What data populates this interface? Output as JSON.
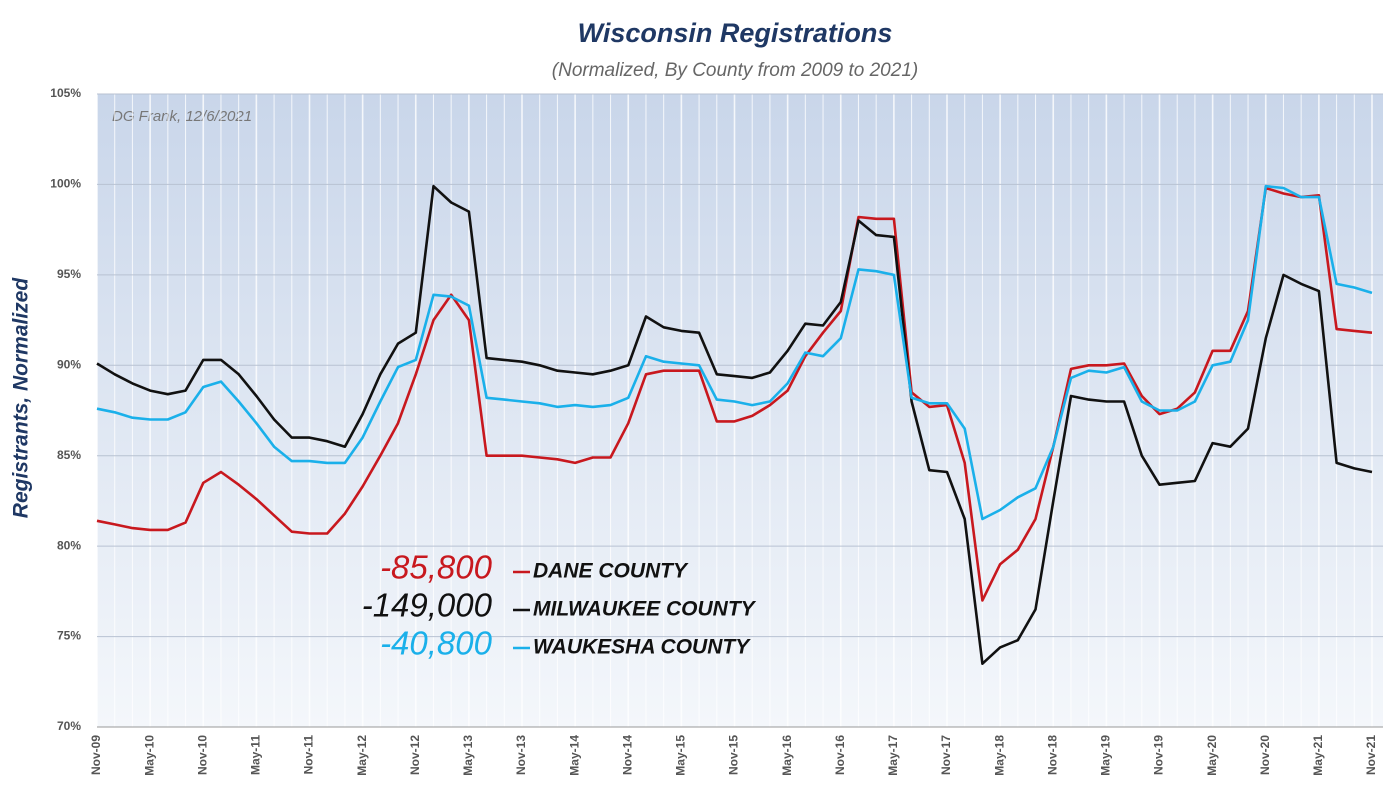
{
  "chart_data": {
    "type": "line",
    "title": "Wisconsin Registrations",
    "subtitle": "(Normalized, By County from 2009 to 2021)",
    "note": "DG Frank, 12/6/2021",
    "y_label": "Registrants, Normalized",
    "categories": [
      "Nov-09",
      null,
      null,
      "May-10",
      null,
      null,
      "Nov-10",
      null,
      null,
      "May-11",
      null,
      null,
      "Nov-11",
      null,
      null,
      "May-12",
      null,
      null,
      "Nov-12",
      null,
      null,
      "May-13",
      null,
      null,
      "Nov-13",
      null,
      null,
      "May-14",
      null,
      null,
      "Nov-14",
      null,
      null,
      "May-15",
      null,
      null,
      "Nov-15",
      null,
      null,
      "May-16",
      null,
      null,
      "Nov-16",
      null,
      null,
      "May-17",
      null,
      null,
      "Nov-17",
      null,
      null,
      "May-18",
      null,
      null,
      "Nov-18",
      null,
      null,
      "May-19",
      null,
      null,
      "Nov-19",
      null,
      null,
      "May-20",
      null,
      null,
      "Nov-20",
      null,
      null,
      "May-21",
      null,
      null,
      "Nov-21"
    ],
    "series": [
      {
        "name": "DANE COUNTY",
        "annotation": "-85,800",
        "color": "#c8181e",
        "values": [
          81.4,
          81.2,
          81.0,
          80.9,
          80.9,
          81.3,
          83.5,
          84.1,
          83.4,
          82.6,
          81.7,
          80.8,
          80.7,
          80.7,
          81.8,
          83.3,
          85.0,
          86.8,
          89.5,
          92.5,
          93.9,
          92.5,
          85.0,
          85.0,
          85.0,
          84.9,
          84.8,
          84.6,
          84.9,
          84.9,
          86.8,
          89.5,
          89.7,
          89.7,
          89.7,
          86.9,
          86.9,
          87.2,
          87.8,
          88.6,
          90.5,
          91.8,
          93.0,
          98.2,
          98.1,
          98.1,
          88.5,
          87.7,
          87.8,
          84.6,
          77.0,
          79.0,
          79.8,
          81.5,
          85.5,
          89.8,
          90.0,
          90.0,
          90.1,
          88.3,
          87.3,
          87.6,
          88.5,
          90.8,
          90.8,
          93.0,
          99.8,
          99.5,
          99.3,
          99.4,
          92.0,
          91.9,
          91.8
        ]
      },
      {
        "name": "MILWAUKEE COUNTY",
        "annotation": "-149,000",
        "color": "#111111",
        "values": [
          90.1,
          89.5,
          89.0,
          88.6,
          88.4,
          88.6,
          90.3,
          90.3,
          89.5,
          88.3,
          87.0,
          86.0,
          86.0,
          85.8,
          85.5,
          87.3,
          89.5,
          91.2,
          91.8,
          99.9,
          99.0,
          98.5,
          90.4,
          90.3,
          90.2,
          90.0,
          89.7,
          89.6,
          89.5,
          89.7,
          90.0,
          92.7,
          92.1,
          91.9,
          91.8,
          89.5,
          89.4,
          89.3,
          89.6,
          90.8,
          92.3,
          92.2,
          93.5,
          98.0,
          97.2,
          97.1,
          88.0,
          84.2,
          84.1,
          81.5,
          73.5,
          74.4,
          74.8,
          76.5,
          82.5,
          88.3,
          88.1,
          88.0,
          88.0,
          85.0,
          83.4,
          83.5,
          83.6,
          85.7,
          85.5,
          86.5,
          91.5,
          95.0,
          94.5,
          94.1,
          84.6,
          84.3,
          84.1
        ]
      },
      {
        "name": "WAUKESHA COUNTY",
        "annotation": "-40,800",
        "color": "#1ab0ea",
        "values": [
          87.6,
          87.4,
          87.1,
          87.0,
          87.0,
          87.4,
          88.8,
          89.1,
          88.0,
          86.8,
          85.5,
          84.7,
          84.7,
          84.6,
          84.6,
          86.0,
          88.0,
          89.9,
          90.3,
          93.9,
          93.8,
          93.3,
          88.2,
          88.1,
          88.0,
          87.9,
          87.7,
          87.8,
          87.7,
          87.8,
          88.2,
          90.5,
          90.2,
          90.1,
          90.0,
          88.1,
          88.0,
          87.8,
          88.0,
          89.0,
          90.7,
          90.5,
          91.5,
          95.3,
          95.2,
          95.0,
          88.2,
          87.9,
          87.9,
          86.5,
          81.5,
          82.0,
          82.7,
          83.2,
          85.5,
          89.3,
          89.7,
          89.6,
          89.9,
          88.0,
          87.5,
          87.5,
          88.0,
          90.0,
          90.2,
          92.5,
          99.9,
          99.8,
          99.3,
          99.3,
          94.5,
          94.3,
          94.0
        ]
      }
    ],
    "ylim": [
      70,
      105
    ],
    "yticks": [
      {
        "value": 70,
        "label": "70%"
      },
      {
        "value": 75,
        "label": "75%"
      },
      {
        "value": 80,
        "label": "80%"
      },
      {
        "value": 85,
        "label": "85%"
      },
      {
        "value": 90,
        "label": "90%"
      },
      {
        "value": 95,
        "label": "95%"
      },
      {
        "value": 100,
        "label": "100%"
      },
      {
        "value": 105,
        "label": "105%"
      }
    ],
    "grid": true
  }
}
